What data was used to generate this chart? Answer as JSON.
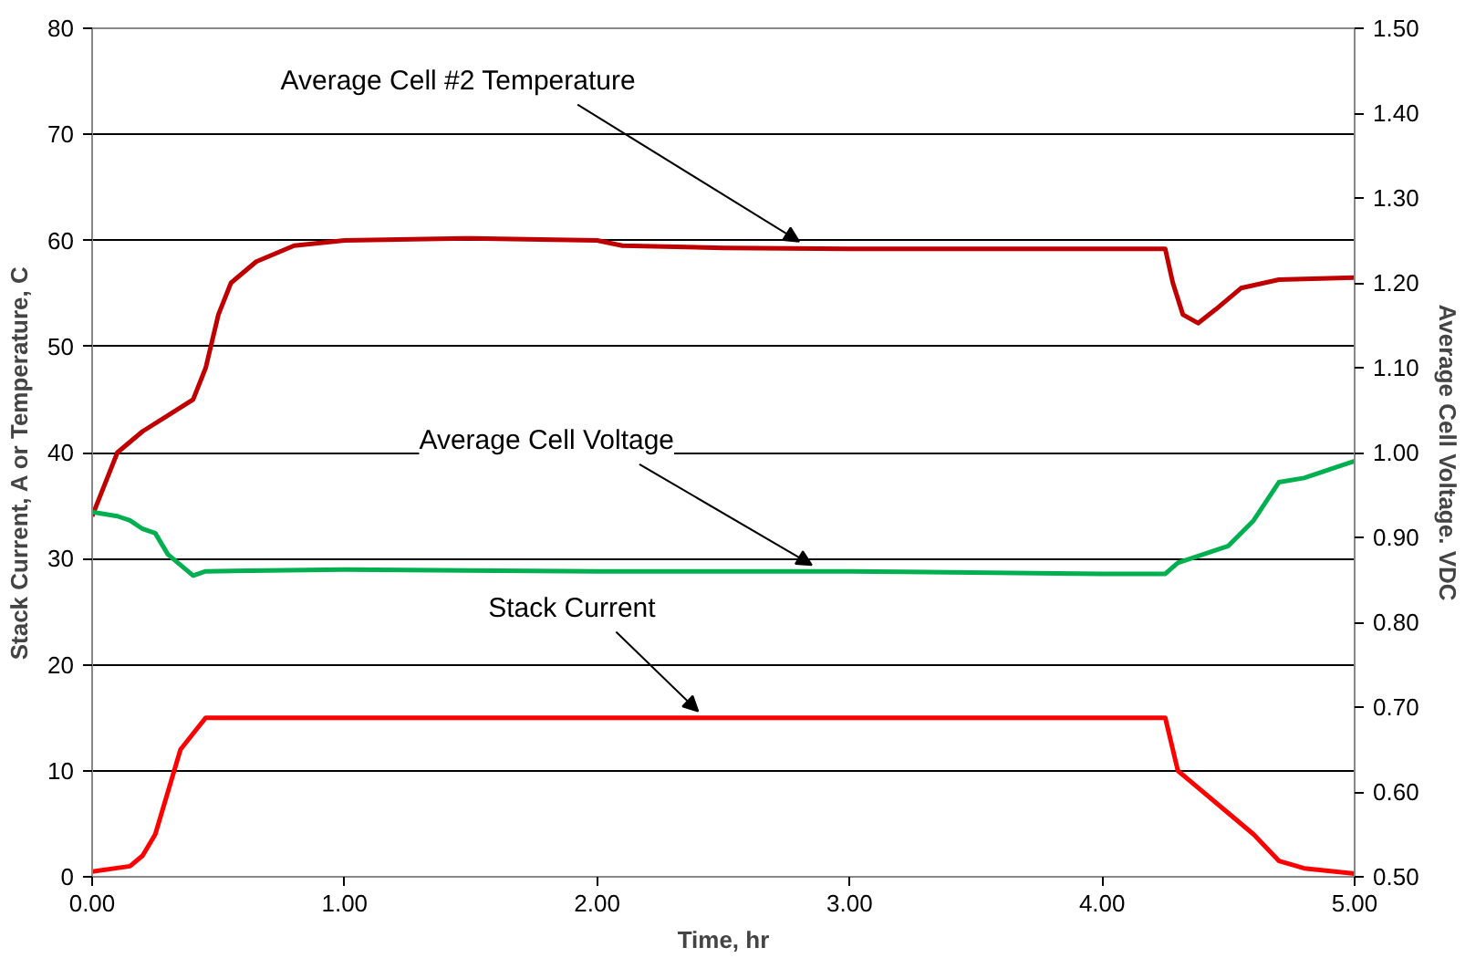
{
  "chart_data": {
    "type": "line",
    "xlabel": "Time, hr",
    "ylabel": "Stack Current, A  or  Temperature,  C",
    "y2label": "Average Cell Voltage. VDC",
    "xlim": [
      0,
      5
    ],
    "xticks": [
      {
        "value": 0,
        "label": "0.00"
      },
      {
        "value": 1,
        "label": "1.00"
      },
      {
        "value": 2,
        "label": "2.00"
      },
      {
        "value": 3,
        "label": "3.00"
      },
      {
        "value": 4,
        "label": "4.00"
      },
      {
        "value": 5,
        "label": "5.00"
      }
    ],
    "ylim": [
      0,
      80
    ],
    "yticks": [
      0,
      10,
      20,
      30,
      40,
      50,
      60,
      70,
      80
    ],
    "y2lim": [
      0.5,
      1.5
    ],
    "y2ticks": [
      {
        "value": 0.5,
        "label": "0.50"
      },
      {
        "value": 0.6,
        "label": "0.60"
      },
      {
        "value": 0.7,
        "label": "0.70"
      },
      {
        "value": 0.8,
        "label": "0.80"
      },
      {
        "value": 0.9,
        "label": "0.90"
      },
      {
        "value": 1.0,
        "label": "1.00"
      },
      {
        "value": 1.1,
        "label": "1.10"
      },
      {
        "value": 1.2,
        "label": "1.20"
      },
      {
        "value": 1.3,
        "label": "1.30"
      },
      {
        "value": 1.4,
        "label": "1.40"
      },
      {
        "value": 1.5,
        "label": "1.50"
      }
    ],
    "grid": "y",
    "marker": "none",
    "line_style": "solid",
    "series": [
      {
        "color": "#c00000",
        "x": [
          0,
          0.05,
          0.1,
          0.2,
          0.3,
          0.4,
          0.45,
          0.5,
          0.55,
          0.65,
          0.8,
          1.0,
          1.5,
          2.0,
          2.1,
          2.5,
          3.0,
          4.0,
          4.25,
          4.28,
          4.32,
          4.38,
          4.45,
          4.55,
          4.7,
          5.0
        ],
        "values": [
          34,
          37,
          40,
          42,
          43.5,
          45,
          48,
          53,
          56,
          58,
          59.5,
          60,
          60.2,
          60,
          59.5,
          59.3,
          59.2,
          59.2,
          59.2,
          56,
          53,
          52.2,
          53.5,
          55.5,
          56.3,
          56.5
        ]
      },
      {
        "color": "#00b050",
        "axis": "y2",
        "x": [
          0,
          0.1,
          0.15,
          0.2,
          0.25,
          0.3,
          0.4,
          0.45,
          1.0,
          2.0,
          3.0,
          4.0,
          4.25,
          4.3,
          4.4,
          4.5,
          4.6,
          4.7,
          4.8,
          5.0
        ],
        "values": [
          0.93,
          0.925,
          0.92,
          0.91,
          0.905,
          0.88,
          0.855,
          0.86,
          0.862,
          0.86,
          0.86,
          0.857,
          0.857,
          0.87,
          0.88,
          0.89,
          0.92,
          0.965,
          0.97,
          0.99
        ]
      },
      {
        "color": "#ff0000",
        "x": [
          0,
          0.15,
          0.2,
          0.25,
          0.3,
          0.35,
          0.4,
          0.45,
          4.25,
          4.3,
          4.35,
          4.5,
          4.6,
          4.7,
          4.8,
          5.0
        ],
        "values": [
          0.5,
          1,
          2,
          4,
          8,
          12,
          13.5,
          15,
          15,
          10,
          9,
          6,
          4,
          1.5,
          0.8,
          0.3
        ]
      }
    ],
    "annotations": [
      {
        "text": "Average Cell #2 Temperature",
        "x": 2.8,
        "y": 59.3
      },
      {
        "text": "Average Cell Voltage",
        "x": 2.85,
        "y": 28.8
      },
      {
        "text": "Stack Current",
        "x": 2.4,
        "y": 15
      }
    ]
  }
}
